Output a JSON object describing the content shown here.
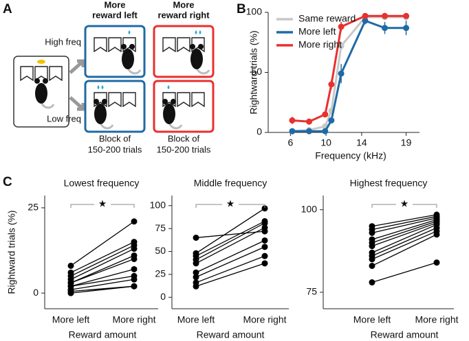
{
  "panel_labels": [
    "A",
    "B",
    "C"
  ],
  "diagram": {
    "rows": [
      "High freq",
      "Low freq"
    ],
    "columns": [
      {
        "title_lines": [
          "More",
          "reward left"
        ],
        "caption_lines": [
          "Block of",
          "150-200 trials"
        ]
      },
      {
        "title_lines": [
          "More",
          "reward right"
        ],
        "caption_lines": [
          "Block of",
          "150-200 trials"
        ]
      }
    ]
  },
  "chart_data": [
    {
      "type": "line",
      "xlabel": "Frequency (kHz)",
      "ylabel": "Rightward trials (%)",
      "x": [
        6.2,
        8.1,
        9.9,
        10.6,
        11.7,
        14.4,
        16.6,
        19
      ],
      "series": [
        {
          "name": "Same reward",
          "color": "#c8c8c8",
          "values": [
            1,
            2,
            5,
            18,
            72,
            96,
            96,
            96
          ],
          "errors": [
            1,
            1,
            1,
            2,
            3,
            2,
            2,
            2
          ]
        },
        {
          "name": "More left",
          "color": "#1f6aa5",
          "values": [
            1,
            1,
            1,
            10,
            49,
            93,
            87,
            87
          ],
          "errors": [
            1,
            1,
            1,
            2,
            8,
            3,
            5,
            6
          ]
        },
        {
          "name": "More right",
          "color": "#e8302e",
          "values": [
            10,
            9,
            15,
            40,
            88,
            97,
            97,
            97
          ],
          "errors": [
            3,
            2,
            2,
            4,
            4,
            2,
            2,
            2
          ]
        }
      ],
      "xlim": [
        3.5,
        20.5
      ],
      "xticks": [
        6,
        10,
        14,
        19
      ],
      "ylim": [
        0,
        100
      ],
      "yticks": [
        0,
        50,
        100
      ],
      "legend": "upper left"
    },
    {
      "type": "slope",
      "title": "Lowest frequency",
      "ylabel": "Rightward trials (%)",
      "xlabel": "Reward amount",
      "categories": [
        "More left",
        "More right"
      ],
      "color": "#000000",
      "annotation": "★",
      "series": [
        {
          "values": [
            8,
            21
          ]
        },
        {
          "values": [
            6,
            15
          ]
        },
        {
          "values": [
            5,
            14
          ]
        },
        {
          "values": [
            4,
            13
          ]
        },
        {
          "values": [
            3,
            11
          ]
        },
        {
          "values": [
            3,
            10
          ]
        },
        {
          "values": [
            2,
            7
          ]
        },
        {
          "values": [
            2,
            5
          ]
        },
        {
          "values": [
            1,
            4
          ]
        },
        {
          "values": [
            0.5,
            2
          ]
        },
        {
          "values": [
            0,
            2
          ]
        }
      ],
      "ylim": [
        -4.6,
        28.6
      ],
      "yticks": [
        0,
        25
      ]
    },
    {
      "type": "slope",
      "title": "Middle frequency",
      "xlabel": "Reward amount",
      "categories": [
        "More left",
        "More right"
      ],
      "color": "#000000",
      "annotation": "★",
      "series": [
        {
          "values": [
            65,
            72
          ]
        },
        {
          "values": [
            48,
            97
          ]
        },
        {
          "values": [
            45,
            83
          ]
        },
        {
          "values": [
            41,
            81
          ]
        },
        {
          "values": [
            37,
            76
          ]
        },
        {
          "values": [
            27,
            62
          ]
        },
        {
          "values": [
            22,
            55
          ]
        },
        {
          "values": [
            16,
            45
          ]
        },
        {
          "values": [
            12,
            37
          ]
        }
      ],
      "ylim": [
        -12.5,
        111
      ],
      "yticks": [
        0,
        25,
        50,
        75,
        100
      ]
    },
    {
      "type": "slope",
      "title": "Highest frequency",
      "xlabel": "Reward amount",
      "categories": [
        "More left",
        "More right"
      ],
      "color": "#000000",
      "annotation": "★",
      "series": [
        {
          "values": [
            95,
            98.5
          ]
        },
        {
          "values": [
            94,
            98
          ]
        },
        {
          "values": [
            93,
            97.5
          ]
        },
        {
          "values": [
            91,
            97
          ]
        },
        {
          "values": [
            90,
            96.5
          ]
        },
        {
          "values": [
            89,
            96
          ]
        },
        {
          "values": [
            87,
            95.5
          ]
        },
        {
          "values": [
            86,
            94.5
          ]
        },
        {
          "values": [
            85,
            93.5
          ]
        },
        {
          "values": [
            83,
            92.5
          ]
        },
        {
          "values": [
            78,
            84
          ]
        }
      ],
      "ylim": [
        70,
        104.3
      ],
      "yticks": [
        75,
        100
      ]
    }
  ]
}
